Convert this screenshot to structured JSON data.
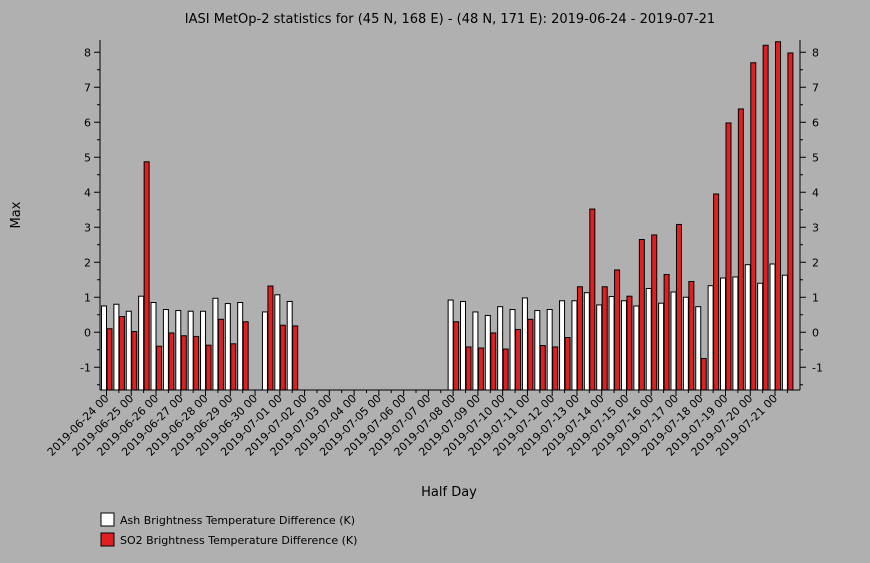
{
  "chart_data": {
    "type": "bar",
    "title": "IASI MetOp-2 statistics for (45 N, 168 E) - (48 N, 171 E): 2019-06-24 - 2019-07-21",
    "xlabel": "Half Day",
    "ylabel": "Max",
    "ylim": [
      -1.65,
      8.35
    ],
    "yticks": [
      -1,
      0,
      1,
      2,
      3,
      4,
      5,
      6,
      7,
      8
    ],
    "xtick_labels": [
      "2019-06-24 00",
      "2019-06-25 00",
      "2019-06-26 00",
      "2019-06-27 00",
      "2019-06-28 00",
      "2019-06-29 00",
      "2019-06-30 00",
      "2019-07-01 00",
      "2019-07-02 00",
      "2019-07-03 00",
      "2019-07-04 00",
      "2019-07-05 00",
      "2019-07-06 00",
      "2019-07-07 00",
      "2019-07-08 00",
      "2019-07-09 00",
      "2019-07-10 00",
      "2019-07-11 00",
      "2019-07-12 00",
      "2019-07-13 00",
      "2019-07-14 00",
      "2019-07-15 00",
      "2019-07-16 00",
      "2019-07-17 00",
      "2019-07-18 00",
      "2019-07-19 00",
      "2019-07-20 00",
      "2019-07-21 00"
    ],
    "grid": false,
    "legend_position": "bottom-left",
    "series": [
      {
        "name": "Ash Brightness Temperature Difference (K)",
        "color": "#ffffff",
        "values": [
          0.75,
          0.8,
          0.6,
          1.03,
          0.85,
          0.65,
          0.62,
          0.6,
          0.6,
          0.97,
          0.82,
          0.85,
          null,
          0.58,
          1.07,
          0.88,
          null,
          null,
          null,
          null,
          null,
          null,
          null,
          null,
          null,
          null,
          null,
          null,
          0.92,
          0.88,
          0.58,
          0.48,
          0.73,
          0.65,
          0.98,
          0.62,
          0.65,
          0.9,
          0.9,
          1.13,
          0.78,
          1.02,
          0.9,
          0.75,
          1.25,
          0.83,
          1.15,
          1.0,
          0.73,
          1.33,
          1.55,
          1.58,
          1.93,
          1.4,
          1.95,
          1.63
        ]
      },
      {
        "name": "SO2 Brightness Temperature Difference (K)",
        "color": "#e02020",
        "values": [
          0.1,
          0.45,
          0.02,
          4.87,
          -0.4,
          -0.02,
          -0.1,
          -0.12,
          -0.37,
          0.37,
          -0.33,
          0.3,
          null,
          1.32,
          0.2,
          0.18,
          null,
          null,
          null,
          null,
          null,
          null,
          null,
          null,
          null,
          null,
          null,
          null,
          0.3,
          -0.42,
          -0.45,
          -0.02,
          -0.48,
          0.08,
          0.37,
          -0.38,
          -0.42,
          -0.15,
          1.3,
          3.52,
          1.3,
          1.78,
          1.03,
          2.65,
          2.78,
          1.65,
          3.08,
          1.45,
          -0.75,
          3.95,
          5.98,
          6.38,
          7.7,
          8.2,
          8.3,
          7.98
        ]
      }
    ]
  }
}
